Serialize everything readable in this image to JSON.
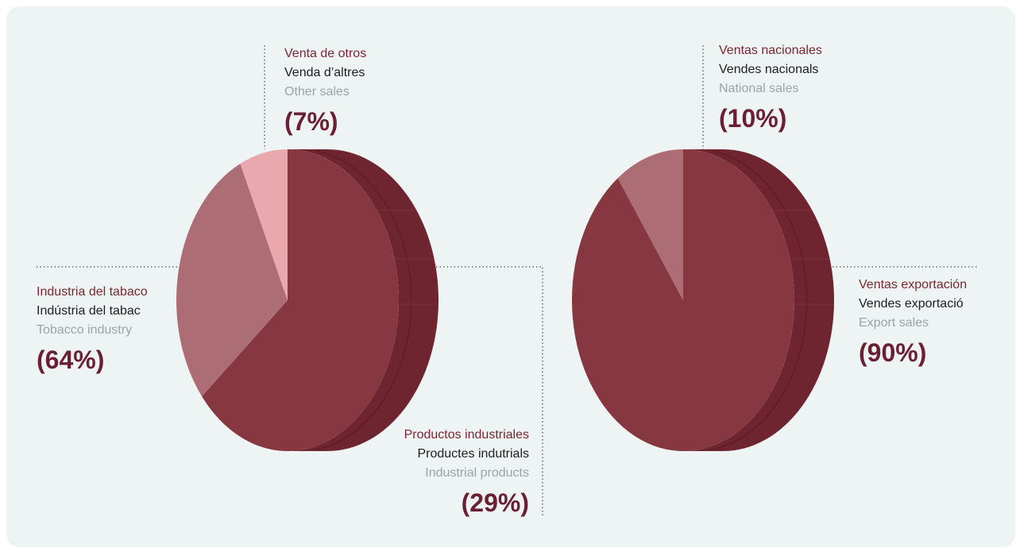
{
  "chart_data": [
    {
      "type": "pie",
      "slices": [
        {
          "label_es": "Industria del tabaco",
          "label_ca": "Indústria del tabac",
          "label_en": "Tobacco industry",
          "value": 64,
          "display": "(64%)",
          "color": "#87373f"
        },
        {
          "label_es": "Productos industriales",
          "label_ca": "Productes indutrials",
          "label_en": "Industrial products",
          "value": 29,
          "display": "(29%)",
          "color": "#ad6d74"
        },
        {
          "label_es": "Venta de otros",
          "label_ca": "Venda d’altres",
          "label_en": "Other sales",
          "value": 7,
          "display": "(7%)",
          "color": "#e9a8ae"
        }
      ]
    },
    {
      "type": "pie",
      "slices": [
        {
          "label_es": "Ventas exportación",
          "label_ca": "Vendes exportació",
          "label_en": "Export sales",
          "value": 90,
          "display": "(90%)",
          "color": "#87373f"
        },
        {
          "label_es": "Ventas nacionales",
          "label_ca": "Vendes nacionals",
          "label_en": "National sales",
          "value": 10,
          "display": "(10%)",
          "color": "#ad6d74"
        }
      ]
    }
  ],
  "colors": {
    "background": "#eef4f4",
    "side": "#6e2530",
    "side_dark": "#5a1b25",
    "accent_text": "#7a2732",
    "percent_text": "#6b1f33",
    "secondary_text": "#1e1e1e",
    "muted_text": "#9ea3a5"
  }
}
